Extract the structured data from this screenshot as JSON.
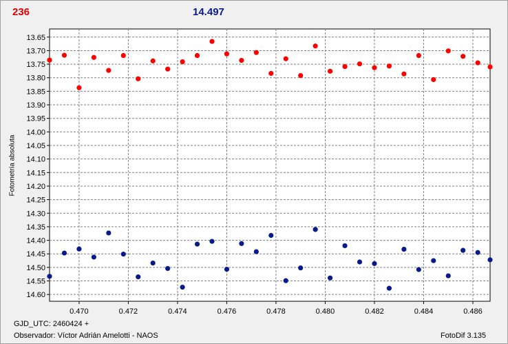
{
  "header": {
    "left_value": "236",
    "center_value": "14.497"
  },
  "footer": {
    "date_line": "GJD_UTC: 2460424 +",
    "observer_line": "Observador: Víctor Adrián Amelotti - NAOS",
    "software": "FotoDif 3.135"
  },
  "colors": {
    "series_red": "#ff0000",
    "series_blue": "#0a1a8c",
    "background": "#ffffff",
    "grid": "#808080"
  },
  "chart_data": {
    "type": "scatter",
    "xlabel": "",
    "ylabel": "Fotometría absoluta",
    "xlim": [
      0.4688,
      0.4867
    ],
    "ylim": [
      13.62,
      14.625
    ],
    "y_inverted": true,
    "grid": true,
    "x_ticks": [
      "0.470",
      "0.472",
      "0.474",
      "0.476",
      "0.478",
      "0.480",
      "0.482",
      "0.484",
      "0.486"
    ],
    "y_ticks": [
      "13.65",
      "13.70",
      "13.75",
      "13.80",
      "13.85",
      "13.90",
      "13.95",
      "14.00",
      "14.05",
      "14.10",
      "14.15",
      "14.20",
      "14.25",
      "14.30",
      "14.35",
      "14.40",
      "14.45",
      "14.50",
      "14.55",
      "14.60"
    ],
    "series": [
      {
        "color": "#ff0000",
        "x": [
          0.4688,
          0.4694,
          0.47,
          0.4706,
          0.4712,
          0.4718,
          0.4724,
          0.473,
          0.4736,
          0.4742,
          0.4748,
          0.4754,
          0.476,
          0.4766,
          0.4772,
          0.4778,
          0.4784,
          0.479,
          0.4796,
          0.4802,
          0.4808,
          0.4814,
          0.482,
          0.4826,
          0.4832,
          0.4838,
          0.4844,
          0.485,
          0.4856,
          0.4862,
          0.4867
        ],
        "y": [
          13.735,
          13.717,
          13.837,
          13.725,
          13.773,
          13.718,
          13.804,
          13.738,
          13.768,
          13.741,
          13.718,
          13.666,
          13.712,
          13.736,
          13.707,
          13.784,
          13.73,
          13.792,
          13.683,
          13.776,
          13.759,
          13.749,
          13.763,
          13.757,
          13.786,
          13.718,
          13.807,
          13.701,
          13.721,
          13.745,
          13.76
        ]
      },
      {
        "color": "#0a1a8c",
        "x": [
          0.4688,
          0.4694,
          0.47,
          0.4706,
          0.4712,
          0.4718,
          0.4724,
          0.473,
          0.4736,
          0.4742,
          0.4748,
          0.4754,
          0.476,
          0.4766,
          0.4772,
          0.4778,
          0.4784,
          0.479,
          0.4796,
          0.4802,
          0.4808,
          0.4814,
          0.482,
          0.4826,
          0.4832,
          0.4838,
          0.4844,
          0.485,
          0.4856,
          0.4862,
          0.4867
        ],
        "y": [
          14.533,
          14.447,
          14.432,
          14.462,
          14.373,
          14.451,
          14.535,
          14.484,
          14.504,
          14.573,
          14.414,
          14.404,
          14.507,
          14.412,
          14.442,
          14.382,
          14.549,
          14.502,
          14.36,
          14.539,
          14.42,
          14.48,
          14.486,
          14.577,
          14.433,
          14.508,
          14.475,
          14.531,
          14.437,
          14.445,
          14.472
        ]
      }
    ]
  }
}
